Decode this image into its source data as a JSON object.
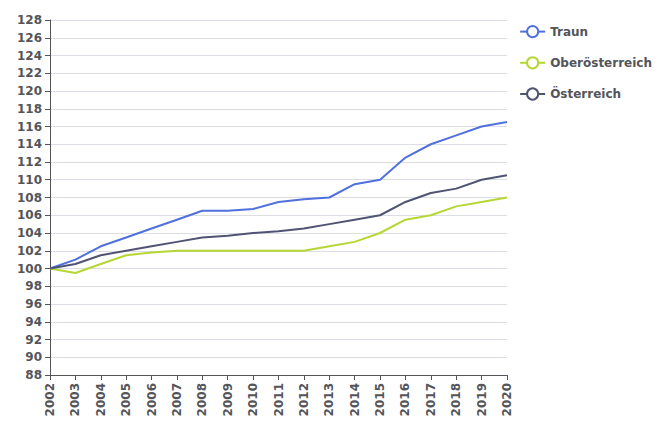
{
  "chart_data": {
    "type": "line",
    "x": [
      2002,
      2003,
      2004,
      2005,
      2006,
      2007,
      2008,
      2009,
      2010,
      2011,
      2012,
      2013,
      2014,
      2015,
      2016,
      2017,
      2018,
      2019,
      2020
    ],
    "series": [
      {
        "name": "Traun",
        "values": [
          100.0,
          101.0,
          102.5,
          103.5,
          104.5,
          105.5,
          106.5,
          106.5,
          106.7,
          107.5,
          107.8,
          108.0,
          109.5,
          110.0,
          112.5,
          114.0,
          115.0,
          116.0,
          116.5
        ]
      },
      {
        "name": "Oberösterreich",
        "values": [
          100.0,
          99.5,
          100.5,
          101.5,
          101.8,
          102.0,
          102.0,
          102.0,
          102.0,
          102.0,
          102.0,
          102.5,
          103.0,
          104.0,
          105.5,
          106.0,
          107.0,
          107.5,
          108.0
        ]
      },
      {
        "name": "Österreich",
        "values": [
          100.0,
          100.5,
          101.5,
          102.0,
          102.5,
          103.0,
          103.5,
          103.7,
          104.0,
          104.2,
          104.5,
          105.0,
          105.5,
          106.0,
          107.5,
          108.5,
          109.0,
          110.0,
          110.5
        ]
      }
    ],
    "xlim": [
      2002,
      2020
    ],
    "xticks": [
      2002,
      2003,
      2004,
      2005,
      2006,
      2007,
      2008,
      2009,
      2010,
      2011,
      2012,
      2013,
      2014,
      2015,
      2016,
      2017,
      2018,
      2019,
      2020
    ],
    "ylim": [
      88,
      128
    ],
    "yticks": [
      88,
      90,
      92,
      94,
      96,
      98,
      100,
      102,
      104,
      106,
      108,
      110,
      112,
      114,
      116,
      118,
      120,
      122,
      124,
      126,
      128
    ],
    "grid": "y",
    "legend": "upper right"
  }
}
